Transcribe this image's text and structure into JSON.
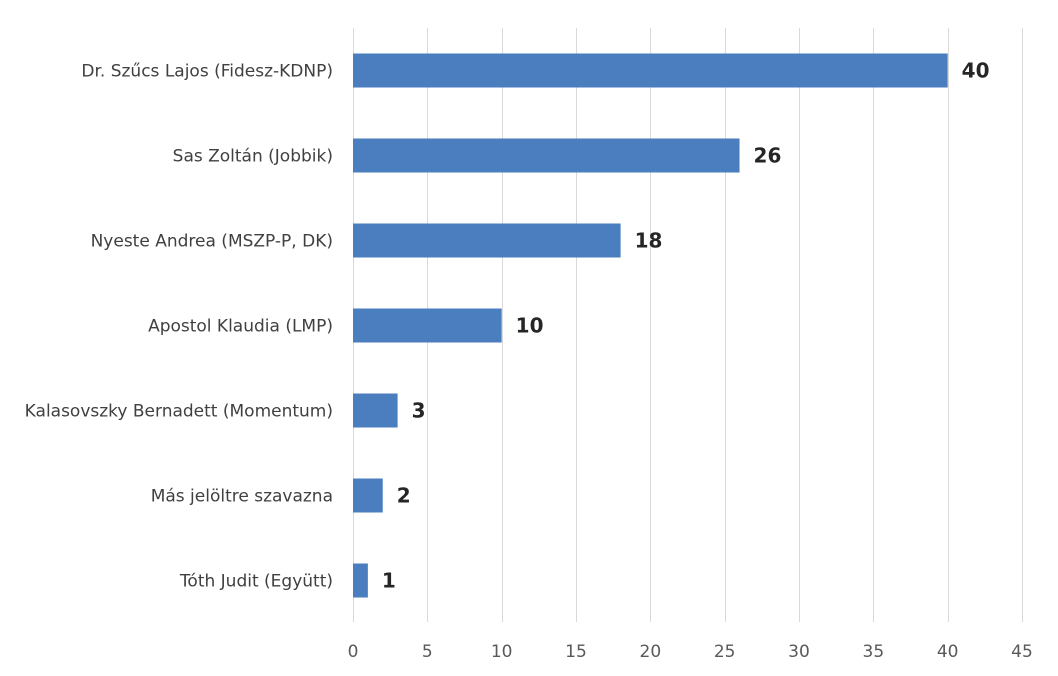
{
  "chart_data": {
    "type": "bar",
    "orientation": "horizontal",
    "categories": [
      "Dr. Szűcs Lajos (Fidesz-KDNP)",
      "Sas Zoltán (Jobbik)",
      "Nyeste Andrea (MSZP-P, DK)",
      "Apostol Klaudia (LMP)",
      "Kalasovszky Bernadett (Momentum)",
      "Más jelöltre szavazna",
      "Tóth Judit (Együtt)"
    ],
    "values": [
      40,
      26,
      18,
      10,
      3,
      2,
      1
    ],
    "data_labels": [
      "40",
      "26",
      "18",
      "10",
      "3",
      "2",
      "1"
    ],
    "x_ticks": [
      "0",
      "5",
      "10",
      "15",
      "20",
      "25",
      "30",
      "35",
      "40",
      "45"
    ],
    "xlim": [
      0,
      45
    ],
    "grid": true,
    "legend": "none",
    "bar_color": "#4a7ebf",
    "title": "",
    "xlabel": "",
    "ylabel": ""
  }
}
